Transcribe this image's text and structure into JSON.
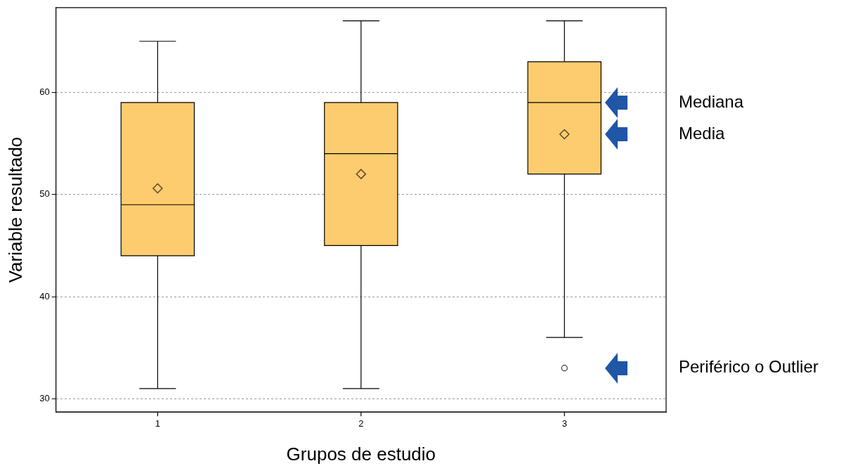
{
  "chart_data": {
    "type": "box",
    "xlabel": "Grupos de estudio",
    "ylabel": "Variable resultado",
    "categories": [
      "1",
      "2",
      "3"
    ],
    "color": "#fdcc6e",
    "boxes": [
      {
        "low": 31,
        "q1": 44,
        "median": 49,
        "q3": 59,
        "high": 65,
        "mean": 50.6
      },
      {
        "low": 31,
        "q1": 45,
        "median": 54,
        "q3": 59,
        "high": 67,
        "mean": 52
      },
      {
        "low": 36,
        "q1": 52,
        "median": 59,
        "q3": 63,
        "high": 67,
        "mean": 55.9,
        "outliers": [
          33
        ]
      }
    ],
    "ylim": [
      28.7,
      68.3
    ],
    "yticks": [
      30,
      40,
      50,
      60
    ],
    "grid": "y",
    "legend": false,
    "annotations": [
      "Mediana",
      "Media",
      "Periférico o Outlier"
    ]
  }
}
